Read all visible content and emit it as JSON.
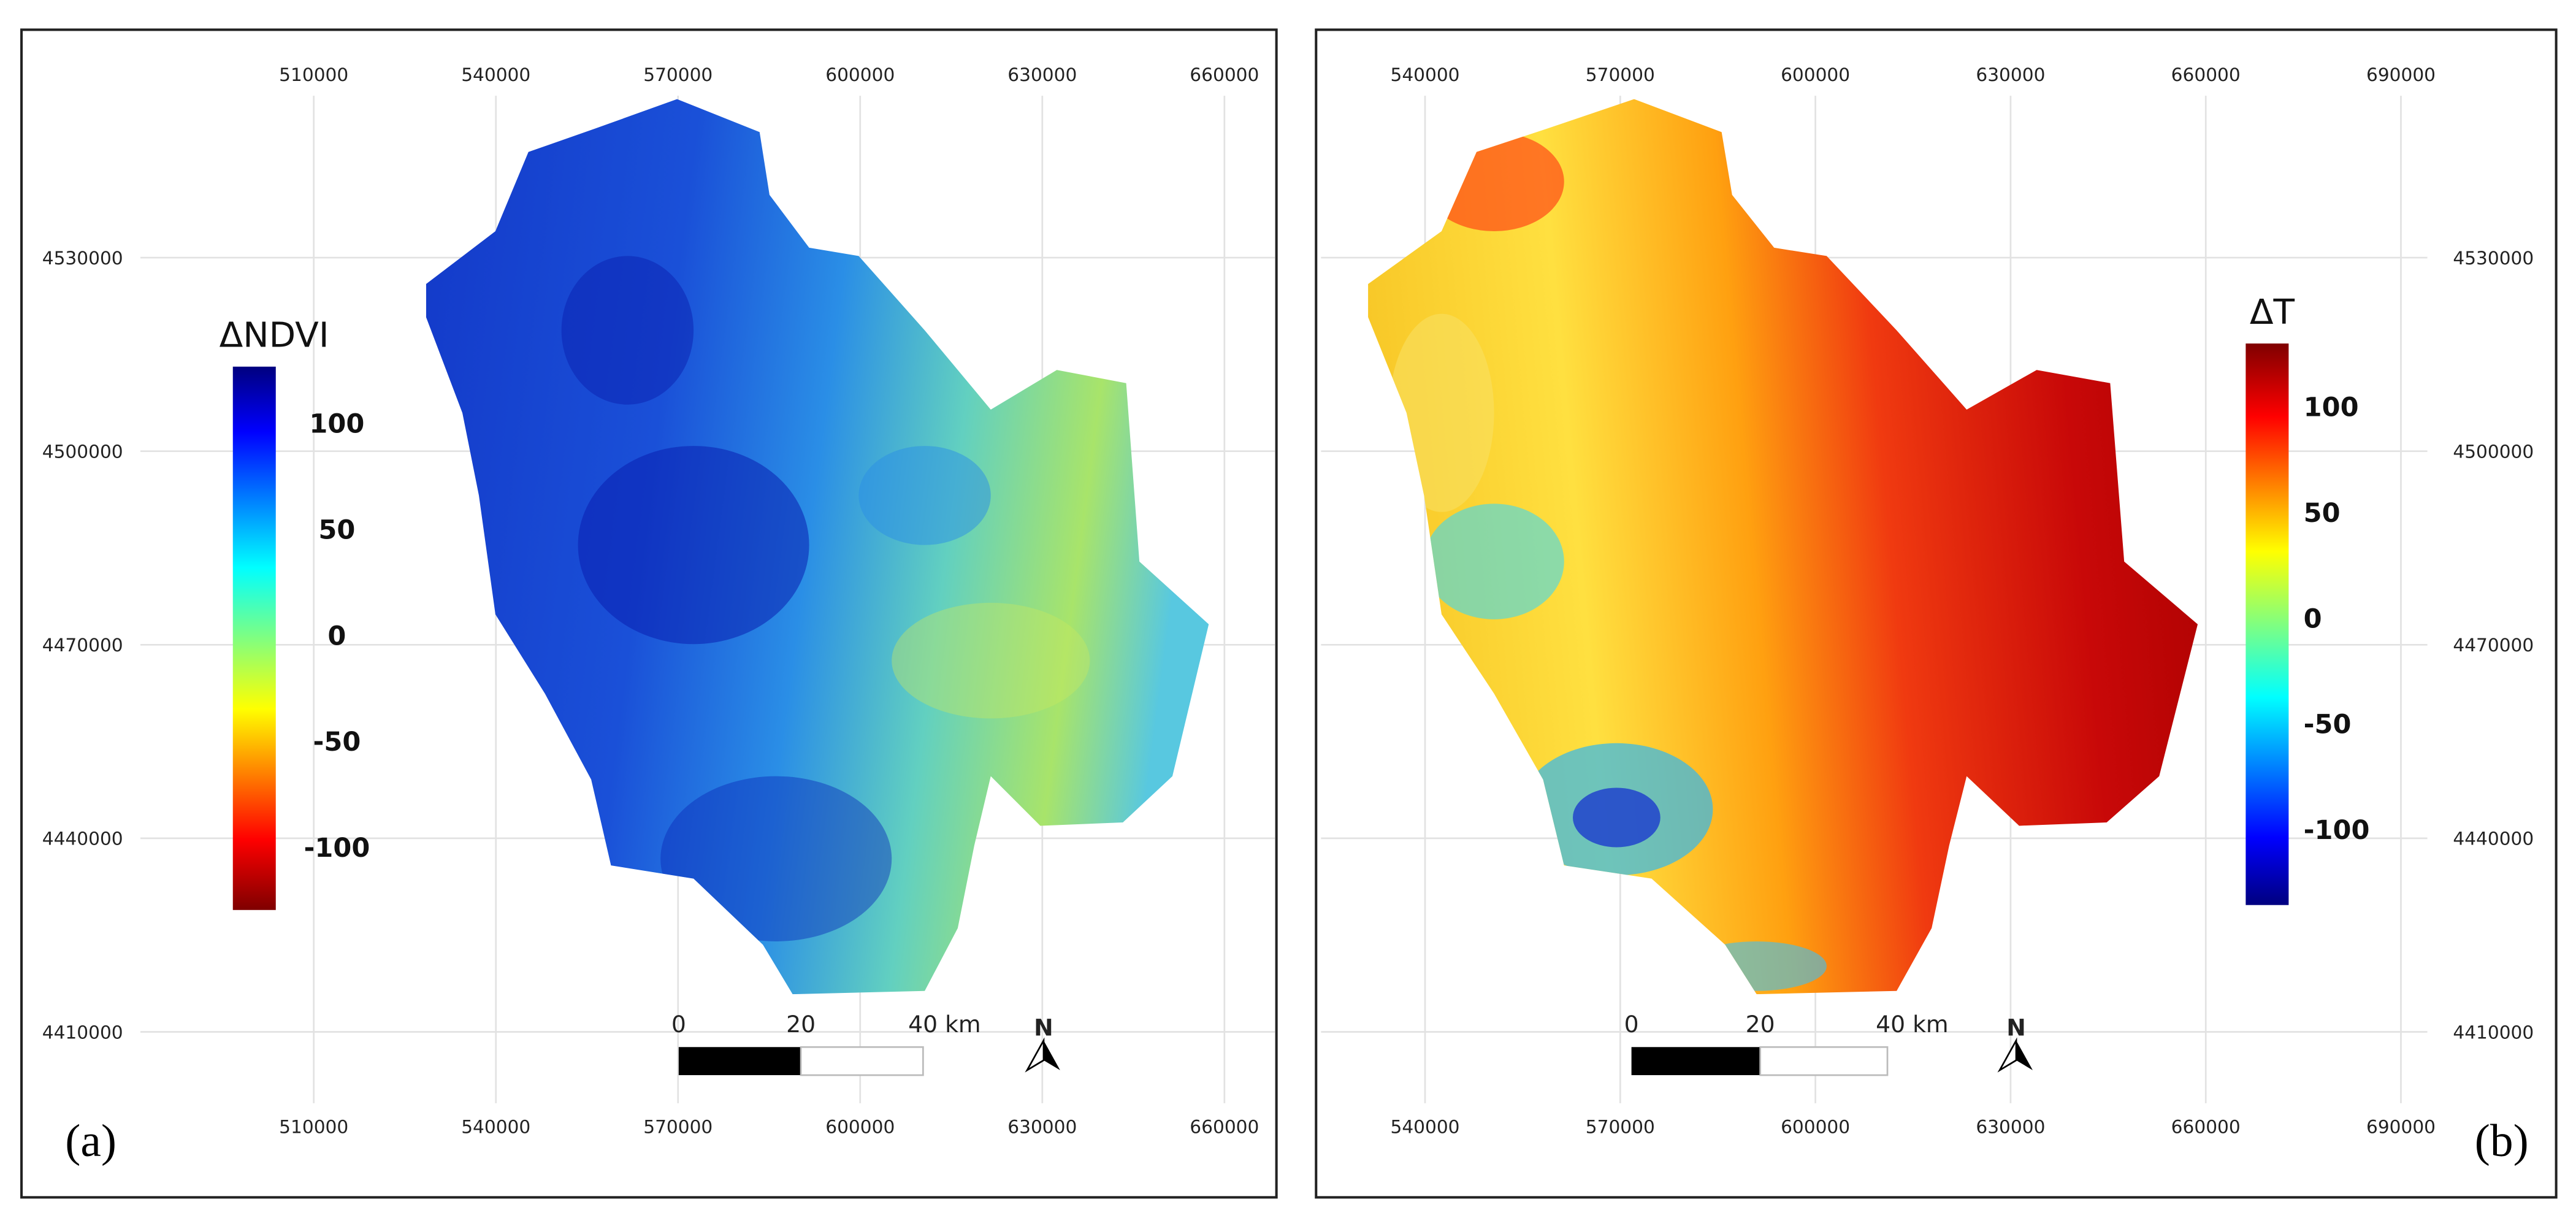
{
  "panels": [
    {
      "label": "(a)",
      "legend": {
        "title": "ΔNDVI",
        "ticks": [
          100,
          50,
          0,
          -50,
          -100
        ]
      },
      "x_ticks": [
        510000,
        540000,
        570000,
        600000,
        630000,
        660000
      ],
      "y_ticks": [
        4530000,
        4500000,
        4470000,
        4440000,
        4410000
      ],
      "scale_bar": [
        "0",
        "20",
        "40 km"
      ],
      "north": "N"
    },
    {
      "label": "(b)",
      "legend": {
        "title": "ΔT",
        "ticks": [
          100,
          50,
          0,
          -50,
          -100
        ]
      },
      "x_ticks": [
        540000,
        570000,
        600000,
        630000,
        660000,
        690000
      ],
      "y_ticks": [
        4530000,
        4500000,
        4470000,
        4440000,
        4410000
      ],
      "scale_bar": [
        "0",
        "20",
        "40 km"
      ],
      "north": "N"
    }
  ]
}
